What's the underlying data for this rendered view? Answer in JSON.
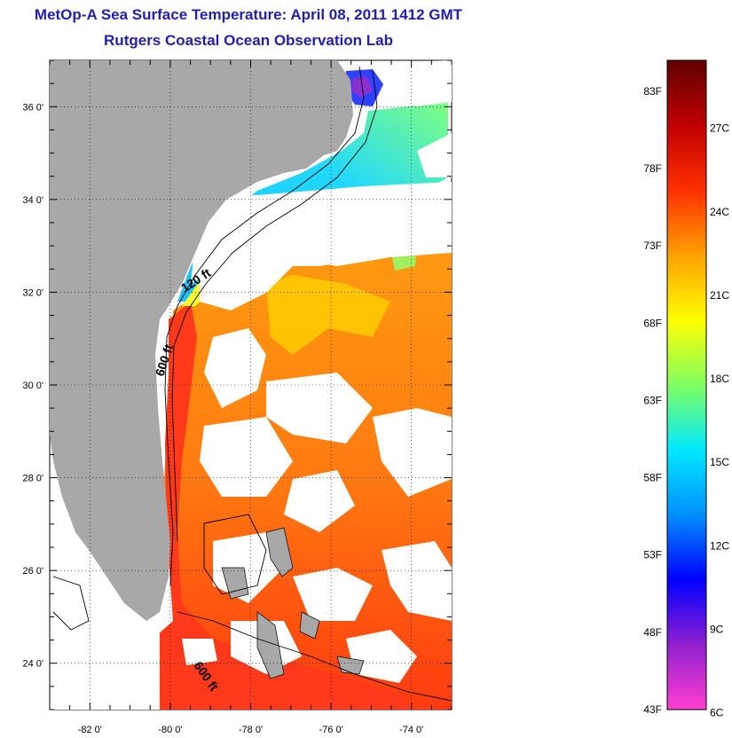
{
  "title": {
    "line1": "MetOp-A Sea Surface Temperature:  April 08, 2011 1412 GMT",
    "line2": "Rutgers Coastal Ocean Observation Lab"
  },
  "map": {
    "lon_range": [
      -83,
      -73
    ],
    "lat_range": [
      23,
      37
    ],
    "lon_ticks": [
      {
        "value": -82,
        "label": "-82 0'"
      },
      {
        "value": -80,
        "label": "-80 0'"
      },
      {
        "value": -78,
        "label": "-78 0'"
      },
      {
        "value": -76,
        "label": "-76 0'"
      },
      {
        "value": -74,
        "label": "-74 0'"
      }
    ],
    "lat_ticks": [
      {
        "value": 24,
        "label": "24 0'"
      },
      {
        "value": 26,
        "label": "26 0'"
      },
      {
        "value": 28,
        "label": "28 0'"
      },
      {
        "value": 30,
        "label": "30 0'"
      },
      {
        "value": 32,
        "label": "32 0'"
      },
      {
        "value": 34,
        "label": "34 0'"
      },
      {
        "value": 36,
        "label": "36 0'"
      }
    ],
    "contour_labels": {
      "c120": "120 ft",
      "c600a": "600 ft",
      "c600b": "600 ft"
    },
    "colors": {
      "land": "#a8a8a8",
      "cloud": "#ffffff"
    }
  },
  "colorbar": {
    "f_range": [
      43,
      85
    ],
    "f_labels": [
      "83F",
      "78F",
      "73F",
      "68F",
      "63F",
      "58F",
      "53F",
      "48F",
      "43F"
    ],
    "c_labels": [
      "27C",
      "24C",
      "21C",
      "18C",
      "15C",
      "12C",
      "9C",
      "6C"
    ],
    "color_stops": [
      "#ff3fd0",
      "#9020d0",
      "#0000ff",
      "#0090ff",
      "#00e8ff",
      "#80ff60",
      "#ffff00",
      "#ffa000",
      "#ff3000",
      "#c00000",
      "#600000"
    ]
  }
}
